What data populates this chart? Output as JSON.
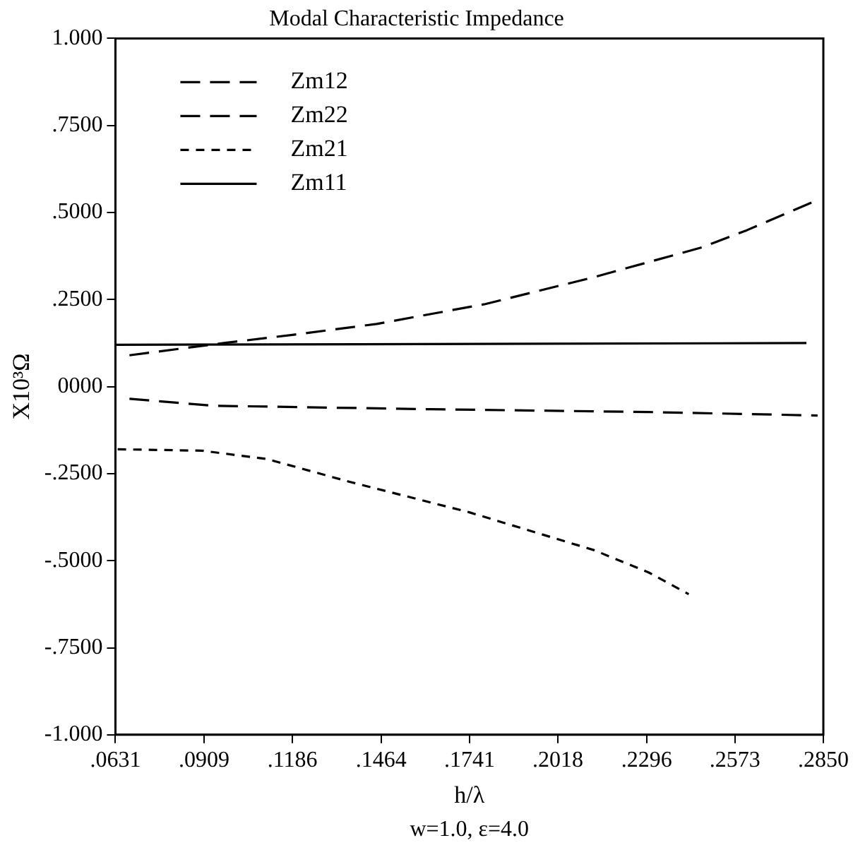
{
  "chart_data": {
    "type": "line",
    "title": "Modal Characteristic Impedance",
    "xlabel": "h/λ",
    "ylabel": "X10³Ω",
    "annotations": [
      "w=1.0, ε=4.0"
    ],
    "xlim": [
      0.0631,
      0.285
    ],
    "xticks": [
      {
        "value": 0.0631,
        "label": ".0631"
      },
      {
        "value": 0.0909,
        "label": ".0909"
      },
      {
        "value": 0.1186,
        "label": ".1186"
      },
      {
        "value": 0.1464,
        "label": ".1464"
      },
      {
        "value": 0.1741,
        "label": ".1741"
      },
      {
        "value": 0.2018,
        "label": ".2018"
      },
      {
        "value": 0.2296,
        "label": ".2296"
      },
      {
        "value": 0.2573,
        "label": ".2573"
      },
      {
        "value": 0.285,
        "label": ".2850"
      }
    ],
    "ylim": [
      -1,
      1
    ],
    "yticks": [
      {
        "value": -1,
        "label": "-1.000"
      },
      {
        "value": -0.75,
        "label": "-.7500"
      },
      {
        "value": -0.5,
        "label": "-.5000"
      },
      {
        "value": -0.25,
        "label": "-.2500"
      },
      {
        "value": 0,
        "label": "0000"
      },
      {
        "value": 0.25,
        "label": ".2500"
      },
      {
        "value": 0.5,
        "label": ".5000"
      },
      {
        "value": 0.75,
        "label": ".7500"
      },
      {
        "value": 1,
        "label": "1.000"
      }
    ],
    "grid": false,
    "legend": "top left",
    "marker": "none",
    "series": [
      {
        "name": "Zm12",
        "color": "#000000",
        "line_style": "dashed",
        "x": [
          0.0675,
          0.0971,
          0.119,
          0.145,
          0.179,
          0.213,
          0.247,
          0.261,
          0.283
        ],
        "values": [
          0.09,
          0.125,
          0.149,
          0.18,
          0.237,
          0.314,
          0.4,
          0.449,
          0.535
        ]
      },
      {
        "name": "Zm22",
        "color": "#000000",
        "line_style": "dashed",
        "x": [
          0.0675,
          0.0937,
          0.162,
          0.23,
          0.2832
        ],
        "values": [
          -0.035,
          -0.055,
          -0.065,
          -0.073,
          -0.083
        ]
      },
      {
        "name": "Zm21",
        "color": "#000000",
        "line_style": "dotted",
        "x": [
          0.0638,
          0.0902,
          0.1106,
          0.1363,
          0.174,
          0.2132,
          0.2303,
          0.2428
        ],
        "values": [
          -0.18,
          -0.184,
          -0.208,
          -0.273,
          -0.361,
          -0.47,
          -0.534,
          -0.596
        ]
      },
      {
        "name": "Zm11",
        "color": "#000000",
        "line_style": "solid",
        "x": [
          0.0631,
          0.2797
        ],
        "values": [
          0.12,
          0.125
        ]
      }
    ]
  }
}
